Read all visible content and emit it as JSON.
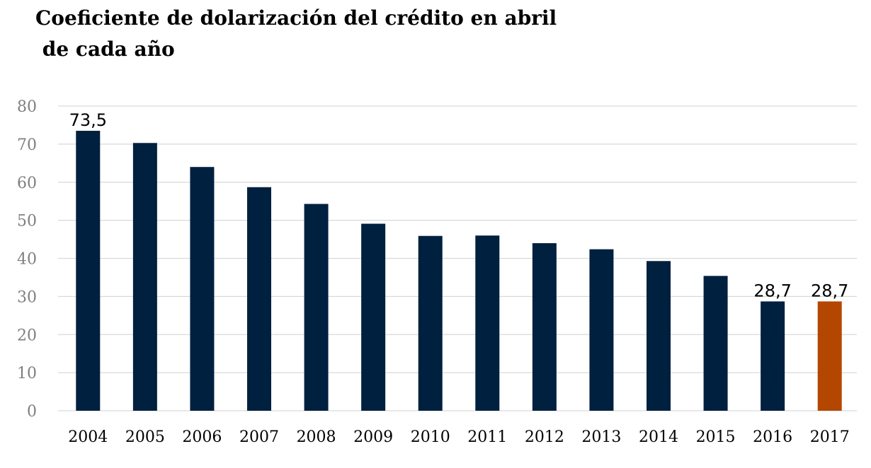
{
  "chart_data": {
    "type": "bar",
    "title_line1": "Coeficiente de dolarización del crédito en abril",
    "title_line2": " de cada año",
    "categories": [
      "2004",
      "2005",
      "2006",
      "2007",
      "2008",
      "2009",
      "2010",
      "2011",
      "2012",
      "2013",
      "2014",
      "2015",
      "2016",
      "2017"
    ],
    "values": [
      73.5,
      70.3,
      64.0,
      58.7,
      54.3,
      49.1,
      45.9,
      46.0,
      44.0,
      42.4,
      39.3,
      35.4,
      28.7,
      28.7
    ],
    "data_labels": [
      {
        "category": "2004",
        "text": "73,5"
      },
      {
        "category": "2016",
        "text": "28,7"
      },
      {
        "category": "2017",
        "text": "28,7"
      }
    ],
    "ylim": [
      0,
      80
    ],
    "yticks": [
      0,
      10,
      20,
      30,
      40,
      50,
      60,
      70,
      80
    ],
    "grid": true,
    "colors": {
      "bar": "#00203f",
      "highlight": "#b34700",
      "grid": "#d9d9d9"
    },
    "highlight_category": "2017"
  }
}
